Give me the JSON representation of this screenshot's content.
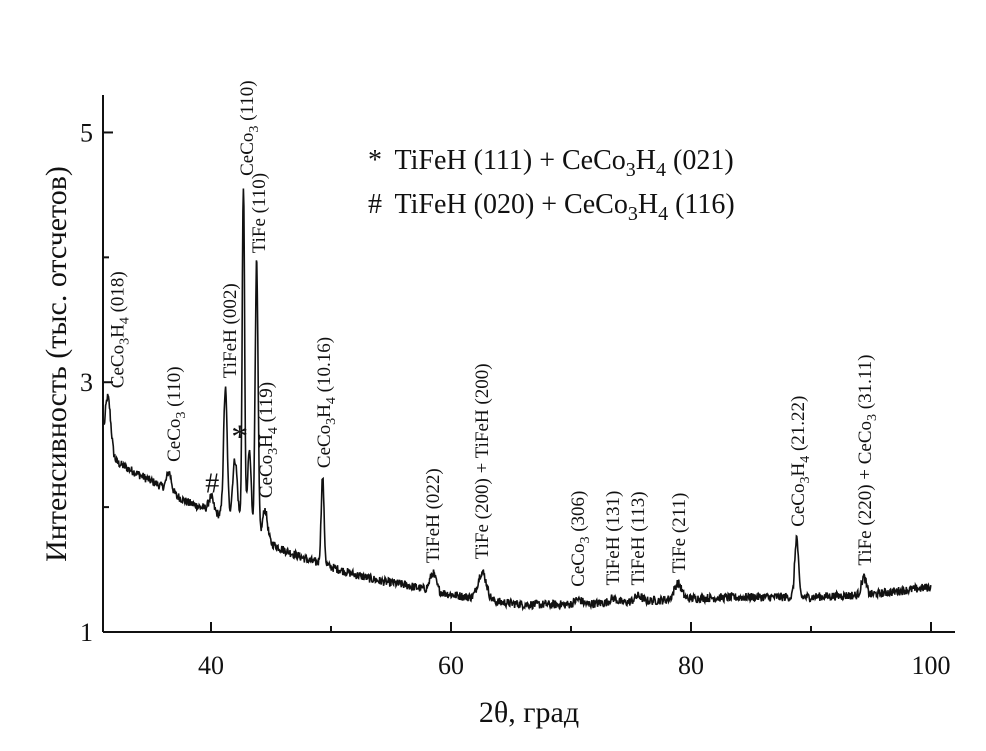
{
  "chart_data": {
    "type": "line",
    "xlabel": "2θ, град",
    "ylabel": "Интенсивность (тыс. отсчетов)",
    "xlim": [
      31,
      102
    ],
    "ylim": [
      1,
      5.3
    ],
    "x_ticks": [
      40,
      60,
      80,
      100
    ],
    "y_ticks": [
      1,
      3,
      5
    ],
    "grid": false,
    "legend_position": "top-right",
    "legend": [
      {
        "symbol": "*",
        "text": "TiFeH (111) + CeCo",
        "sub1": "3",
        "text2": "H",
        "sub2": "4",
        "text3": " (021)"
      },
      {
        "symbol": "#",
        "text": "TiFeH (020) + CeCo",
        "sub1": "3",
        "text2": "H",
        "sub2": "4",
        "text3": " (116)"
      }
    ],
    "series": [
      {
        "baseline": [
          [
            31,
            2.42
          ],
          [
            34,
            2.26
          ],
          [
            36,
            2.16
          ],
          [
            38,
            2.04
          ],
          [
            40,
            1.97
          ],
          [
            42,
            1.88
          ],
          [
            44,
            1.76
          ],
          [
            46,
            1.66
          ],
          [
            48,
            1.58
          ],
          [
            50,
            1.52
          ],
          [
            52,
            1.46
          ],
          [
            54,
            1.41
          ],
          [
            56,
            1.38
          ],
          [
            58,
            1.34
          ],
          [
            60,
            1.3
          ],
          [
            62,
            1.27
          ],
          [
            64,
            1.24
          ],
          [
            66,
            1.22
          ],
          [
            70,
            1.22
          ],
          [
            75,
            1.24
          ],
          [
            80,
            1.27
          ],
          [
            85,
            1.28
          ],
          [
            90,
            1.28
          ],
          [
            95,
            1.3
          ],
          [
            100,
            1.36
          ]
        ],
        "peaks": [
          {
            "x": 31.4,
            "y": 2.88,
            "w": 0.25
          },
          {
            "x": 36.5,
            "y": 2.28,
            "w": 0.2
          },
          {
            "x": 40.0,
            "y": 2.08,
            "w": 0.2
          },
          {
            "x": 41.2,
            "y": 2.95,
            "w": 0.15
          },
          {
            "x": 42.0,
            "y": 2.38,
            "w": 0.2
          },
          {
            "x": 42.7,
            "y": 4.58,
            "w": 0.1
          },
          {
            "x": 43.2,
            "y": 2.45,
            "w": 0.15
          },
          {
            "x": 43.8,
            "y": 3.97,
            "w": 0.12
          },
          {
            "x": 44.5,
            "y": 1.98,
            "w": 0.2
          },
          {
            "x": 49.3,
            "y": 2.24,
            "w": 0.12
          },
          {
            "x": 58.5,
            "y": 1.47,
            "w": 0.25
          },
          {
            "x": 62.6,
            "y": 1.48,
            "w": 0.35
          },
          {
            "x": 70.6,
            "y": 1.26,
            "w": 0.3
          },
          {
            "x": 73.5,
            "y": 1.27,
            "w": 0.3
          },
          {
            "x": 75.6,
            "y": 1.29,
            "w": 0.3
          },
          {
            "x": 78.9,
            "y": 1.39,
            "w": 0.3
          },
          {
            "x": 88.8,
            "y": 1.76,
            "w": 0.15
          },
          {
            "x": 94.4,
            "y": 1.44,
            "w": 0.2
          }
        ]
      }
    ],
    "peak_labels": [
      {
        "x": 32.2,
        "y": 2.92,
        "parts": [
          [
            "CeCo",
            ""
          ],
          [
            "3",
            "sub"
          ],
          [
            "H",
            ""
          ],
          [
            "4",
            "sub"
          ],
          [
            " (018)",
            ""
          ]
        ]
      },
      {
        "x": 36.9,
        "y": 2.33,
        "parts": [
          [
            "CeCo",
            ""
          ],
          [
            "3",
            "sub"
          ],
          [
            " (110)",
            ""
          ]
        ]
      },
      {
        "x": 41.6,
        "y": 3.0,
        "parts": [
          [
            "TiFeH (002)",
            ""
          ]
        ]
      },
      {
        "x": 43.0,
        "y": 4.62,
        "parts": [
          [
            "CeCo",
            ""
          ],
          [
            "3",
            "sub"
          ],
          [
            " (110)",
            ""
          ]
        ]
      },
      {
        "x": 44.0,
        "y": 4.0,
        "parts": [
          [
            "TiFe (110)",
            ""
          ]
        ]
      },
      {
        "x": 44.6,
        "y": 2.04,
        "parts": [
          [
            "CeCo",
            ""
          ],
          [
            "3",
            "sub"
          ],
          [
            "H",
            ""
          ],
          [
            "4",
            "sub"
          ],
          [
            " (119)",
            ""
          ]
        ]
      },
      {
        "x": 49.4,
        "y": 2.28,
        "parts": [
          [
            "CeCo",
            ""
          ],
          [
            "3",
            "sub"
          ],
          [
            "H",
            ""
          ],
          [
            "4",
            "sub"
          ],
          [
            " (10.16)",
            ""
          ]
        ]
      },
      {
        "x": 58.5,
        "y": 1.52,
        "parts": [
          [
            "TiFeH (022)",
            ""
          ]
        ]
      },
      {
        "x": 62.6,
        "y": 1.55,
        "parts": [
          [
            "TiFe (200) + TiFeH (200)",
            ""
          ]
        ]
      },
      {
        "x": 70.6,
        "y": 1.33,
        "parts": [
          [
            "CeCo",
            ""
          ],
          [
            "3",
            "sub"
          ],
          [
            " (306)",
            ""
          ]
        ]
      },
      {
        "x": 73.5,
        "y": 1.34,
        "parts": [
          [
            "TiFeH (131)",
            ""
          ]
        ]
      },
      {
        "x": 75.6,
        "y": 1.34,
        "parts": [
          [
            "TiFeH (113)",
            ""
          ]
        ]
      },
      {
        "x": 79.0,
        "y": 1.44,
        "parts": [
          [
            "TiFe (211)",
            ""
          ]
        ]
      },
      {
        "x": 88.9,
        "y": 1.81,
        "parts": [
          [
            "CeCo",
            ""
          ],
          [
            "3",
            "sub"
          ],
          [
            "H",
            ""
          ],
          [
            "4",
            "sub"
          ],
          [
            " (21.22)",
            ""
          ]
        ]
      },
      {
        "x": 94.5,
        "y": 1.5,
        "parts": [
          [
            "TiFe (220) + CeCo",
            ""
          ],
          [
            "3",
            "sub"
          ],
          [
            " (31.11)",
            ""
          ]
        ]
      }
    ],
    "markers": [
      {
        "symbol": "#",
        "x": 40.1,
        "y": 2.1
      },
      {
        "symbol": "*",
        "x": 42.4,
        "y": 2.46
      }
    ]
  }
}
